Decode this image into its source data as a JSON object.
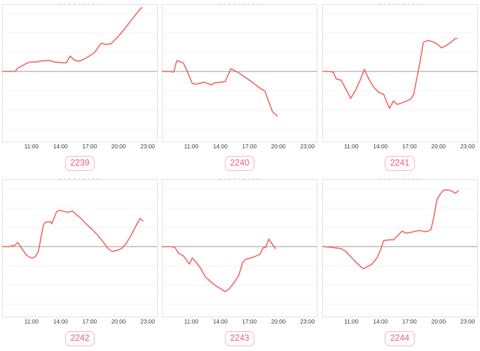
{
  "page": {
    "background": "#ffffff"
  },
  "colors": {
    "line": "#f4625f",
    "zero_line": "#979797",
    "gridline": "#f2f2f2",
    "plot_border": "#e1e1e1",
    "axis_text": "#3b3b3b",
    "badge_border": "#f8b4c9",
    "badge_text": "#e8608c"
  },
  "axis": {
    "hour_min": 8,
    "hour_max": 24,
    "tick_hours": [
      11,
      14,
      17,
      20,
      23
    ],
    "tick_labels": [
      "11:00",
      "14:00",
      "17:00",
      "20:00",
      "23:00"
    ]
  },
  "chart_data": [
    {
      "type": "line",
      "badge": "2239",
      "title": "",
      "xlabel": "",
      "ylabel": "",
      "x_range": [
        8,
        24
      ],
      "ylim": [
        -105,
        100
      ],
      "grid": "horizontal",
      "legend": "none",
      "points": [
        [
          8,
          0
        ],
        [
          8.5,
          0
        ],
        [
          9.3,
          0
        ],
        [
          9.6,
          5
        ],
        [
          10.1,
          9
        ],
        [
          10.5,
          12
        ],
        [
          10.9,
          14
        ],
        [
          11.5,
          14
        ],
        [
          12.2,
          16
        ],
        [
          12.9,
          16
        ],
        [
          13.4,
          14
        ],
        [
          14.2,
          13
        ],
        [
          14.6,
          13
        ],
        [
          15.0,
          23
        ],
        [
          15.4,
          17
        ],
        [
          15.9,
          15
        ],
        [
          16.4,
          18
        ],
        [
          17.0,
          23
        ],
        [
          17.5,
          28
        ],
        [
          18.2,
          42
        ],
        [
          18.6,
          40
        ],
        [
          19.2,
          41
        ],
        [
          19.9,
          51
        ],
        [
          20.6,
          63
        ],
        [
          21.3,
          76
        ],
        [
          22.0,
          89
        ],
        [
          22.4,
          95
        ]
      ]
    },
    {
      "type": "line",
      "badge": "2240",
      "title": "",
      "xlabel": "",
      "ylabel": "",
      "x_range": [
        8,
        24
      ],
      "ylim": [
        -105,
        100
      ],
      "grid": "horizontal",
      "legend": "none",
      "points": [
        [
          8,
          0
        ],
        [
          8.7,
          0
        ],
        [
          9.2,
          -1
        ],
        [
          9.5,
          16
        ],
        [
          9.8,
          15
        ],
        [
          10.2,
          12
        ],
        [
          10.6,
          0
        ],
        [
          11.1,
          -18
        ],
        [
          11.5,
          -19
        ],
        [
          12.0,
          -17
        ],
        [
          12.4,
          -16
        ],
        [
          12.7,
          -18
        ],
        [
          13.1,
          -20
        ],
        [
          13.4,
          -17
        ],
        [
          14.0,
          -16
        ],
        [
          14.5,
          -15
        ],
        [
          15.1,
          4
        ],
        [
          15.4,
          2
        ],
        [
          16.0,
          -3
        ],
        [
          16.6,
          -9
        ],
        [
          17.3,
          -16
        ],
        [
          18.0,
          -24
        ],
        [
          18.6,
          -29
        ],
        [
          19.0,
          -45
        ],
        [
          19.4,
          -60
        ],
        [
          19.7,
          -64
        ],
        [
          19.9,
          -66
        ]
      ]
    },
    {
      "type": "line",
      "badge": "2241",
      "title": "",
      "xlabel": "",
      "ylabel": "",
      "x_range": [
        8,
        24
      ],
      "ylim": [
        -105,
        100
      ],
      "grid": "horizontal",
      "legend": "none",
      "points": [
        [
          8,
          0
        ],
        [
          8.6,
          0
        ],
        [
          9.1,
          -1
        ],
        [
          9.4,
          -11
        ],
        [
          9.9,
          -13
        ],
        [
          10.4,
          -26
        ],
        [
          10.9,
          -40
        ],
        [
          11.4,
          -28
        ],
        [
          11.9,
          -12
        ],
        [
          12.3,
          3
        ],
        [
          12.8,
          -12
        ],
        [
          13.3,
          -24
        ],
        [
          13.8,
          -31
        ],
        [
          14.3,
          -34
        ],
        [
          14.9,
          -55
        ],
        [
          15.3,
          -44
        ],
        [
          15.7,
          -49
        ],
        [
          16.1,
          -47
        ],
        [
          16.7,
          -44
        ],
        [
          17.1,
          -41
        ],
        [
          17.4,
          -34
        ],
        [
          18.0,
          10
        ],
        [
          18.4,
          43
        ],
        [
          18.8,
          46
        ],
        [
          19.2,
          45
        ],
        [
          19.7,
          42
        ],
        [
          20.3,
          35
        ],
        [
          20.8,
          39
        ],
        [
          21.3,
          44
        ],
        [
          21.7,
          49
        ],
        [
          21.9,
          49
        ]
      ]
    },
    {
      "type": "line",
      "badge": "2242",
      "title": "",
      "xlabel": "",
      "ylabel": "",
      "x_range": [
        8,
        24
      ],
      "ylim": [
        -105,
        100
      ],
      "grid": "horizontal",
      "legend": "none",
      "points": [
        [
          8,
          0
        ],
        [
          8.7,
          0
        ],
        [
          9.3,
          2
        ],
        [
          9.6,
          6
        ],
        [
          10.0,
          -3
        ],
        [
          10.5,
          -13
        ],
        [
          11.0,
          -17
        ],
        [
          11.4,
          -15
        ],
        [
          11.7,
          -8
        ],
        [
          12.2,
          30
        ],
        [
          12.4,
          36
        ],
        [
          12.9,
          37
        ],
        [
          13.1,
          34
        ],
        [
          13.6,
          52
        ],
        [
          13.9,
          54
        ],
        [
          14.4,
          52
        ],
        [
          14.8,
          51
        ],
        [
          15.2,
          53
        ],
        [
          15.6,
          48
        ],
        [
          16.1,
          42
        ],
        [
          16.7,
          33
        ],
        [
          17.3,
          25
        ],
        [
          17.9,
          16
        ],
        [
          18.4,
          7
        ],
        [
          18.9,
          -3
        ],
        [
          19.3,
          -7
        ],
        [
          19.8,
          -6
        ],
        [
          20.3,
          -3
        ],
        [
          20.8,
          5
        ],
        [
          21.3,
          17
        ],
        [
          21.8,
          31
        ],
        [
          22.2,
          42
        ],
        [
          22.5,
          38
        ]
      ]
    },
    {
      "type": "line",
      "badge": "2243",
      "title": "",
      "xlabel": "",
      "ylabel": "",
      "x_range": [
        8,
        24
      ],
      "ylim": [
        -105,
        100
      ],
      "grid": "horizontal",
      "legend": "none",
      "points": [
        [
          8,
          0
        ],
        [
          8.8,
          0
        ],
        [
          9.3,
          -1
        ],
        [
          9.7,
          -10
        ],
        [
          10.2,
          -14
        ],
        [
          10.8,
          -26
        ],
        [
          11.1,
          -17
        ],
        [
          11.5,
          -23
        ],
        [
          12.0,
          -33
        ],
        [
          12.4,
          -44
        ],
        [
          13.0,
          -52
        ],
        [
          13.6,
          -59
        ],
        [
          14.1,
          -63
        ],
        [
          14.5,
          -67
        ],
        [
          14.9,
          -63
        ],
        [
          15.4,
          -54
        ],
        [
          15.9,
          -43
        ],
        [
          16.3,
          -24
        ],
        [
          16.6,
          -19
        ],
        [
          17.1,
          -17
        ],
        [
          17.7,
          -14
        ],
        [
          18.1,
          -11
        ],
        [
          18.4,
          -2
        ],
        [
          18.7,
          -1
        ],
        [
          19.0,
          11
        ],
        [
          19.3,
          5
        ],
        [
          19.7,
          -3
        ]
      ]
    },
    {
      "type": "line",
      "badge": "2244",
      "title": "",
      "xlabel": "",
      "ylabel": "",
      "x_range": [
        8,
        24
      ],
      "ylim": [
        -105,
        100
      ],
      "grid": "horizontal",
      "legend": "none",
      "points": [
        [
          8,
          0
        ],
        [
          8.8,
          -1
        ],
        [
          9.4,
          -2
        ],
        [
          9.9,
          -3
        ],
        [
          10.3,
          -6
        ],
        [
          10.9,
          -15
        ],
        [
          11.5,
          -24
        ],
        [
          12.2,
          -33
        ],
        [
          12.6,
          -30
        ],
        [
          13.1,
          -26
        ],
        [
          13.6,
          -17
        ],
        [
          14.0,
          -4
        ],
        [
          14.3,
          9
        ],
        [
          14.9,
          10
        ],
        [
          15.3,
          10
        ],
        [
          15.8,
          17
        ],
        [
          16.2,
          23
        ],
        [
          16.6,
          20
        ],
        [
          17.1,
          21
        ],
        [
          17.6,
          23
        ],
        [
          18.1,
          24
        ],
        [
          18.5,
          22
        ],
        [
          18.9,
          23
        ],
        [
          19.2,
          26
        ],
        [
          19.5,
          45
        ],
        [
          19.8,
          70
        ],
        [
          20.2,
          79
        ],
        [
          20.5,
          84
        ],
        [
          21.0,
          84
        ],
        [
          21.4,
          82
        ],
        [
          21.7,
          79
        ],
        [
          22.0,
          83
        ]
      ]
    }
  ]
}
